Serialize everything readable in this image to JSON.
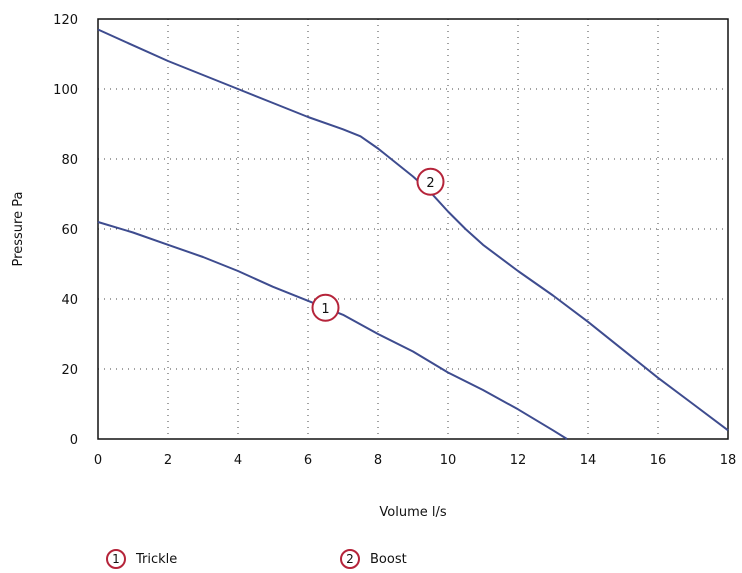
{
  "chart_data": {
    "type": "line",
    "title": "",
    "xlabel": "Volume l/s",
    "ylabel": "Pressure Pa",
    "xlim": [
      0,
      18
    ],
    "ylim": [
      0,
      120
    ],
    "xticks": [
      "0",
      "2",
      "4",
      "6",
      "8",
      "10",
      "12",
      "14",
      "16",
      "18"
    ],
    "yticks": [
      "0",
      "20",
      "40",
      "60",
      "80",
      "100",
      "120"
    ],
    "grid": true,
    "legend_position": "bottom",
    "series": [
      {
        "name": "Trickle",
        "marker": "1",
        "marker_at": [
          6.5,
          37.5
        ],
        "color": "#3e4c8f",
        "x": [
          0,
          1,
          2,
          3,
          4,
          5,
          6,
          7,
          8,
          9,
          10,
          11,
          12,
          13,
          13.4
        ],
        "y": [
          62,
          59,
          55.5,
          52,
          48,
          43.5,
          39.5,
          35.5,
          30,
          25,
          19,
          14,
          8.5,
          2.5,
          0
        ]
      },
      {
        "name": "Boost",
        "marker": "2",
        "marker_at": [
          9.5,
          73.5
        ],
        "color": "#3e4c8f",
        "x": [
          0,
          1,
          2,
          3,
          4,
          5,
          6,
          7,
          7.5,
          8,
          8.5,
          9,
          9.5,
          10,
          10.5,
          11,
          12,
          13,
          14,
          15,
          16,
          17,
          18
        ],
        "y": [
          117,
          112.5,
          108,
          104,
          100,
          96,
          92,
          88.5,
          86.5,
          83,
          79,
          75,
          70.5,
          65,
          60,
          55.5,
          48,
          41,
          33.5,
          25.5,
          17.5,
          10,
          2.5
        ]
      }
    ]
  },
  "legend": [
    {
      "badge": "1",
      "label": "Trickle"
    },
    {
      "badge": "2",
      "label": "Boost"
    }
  ]
}
